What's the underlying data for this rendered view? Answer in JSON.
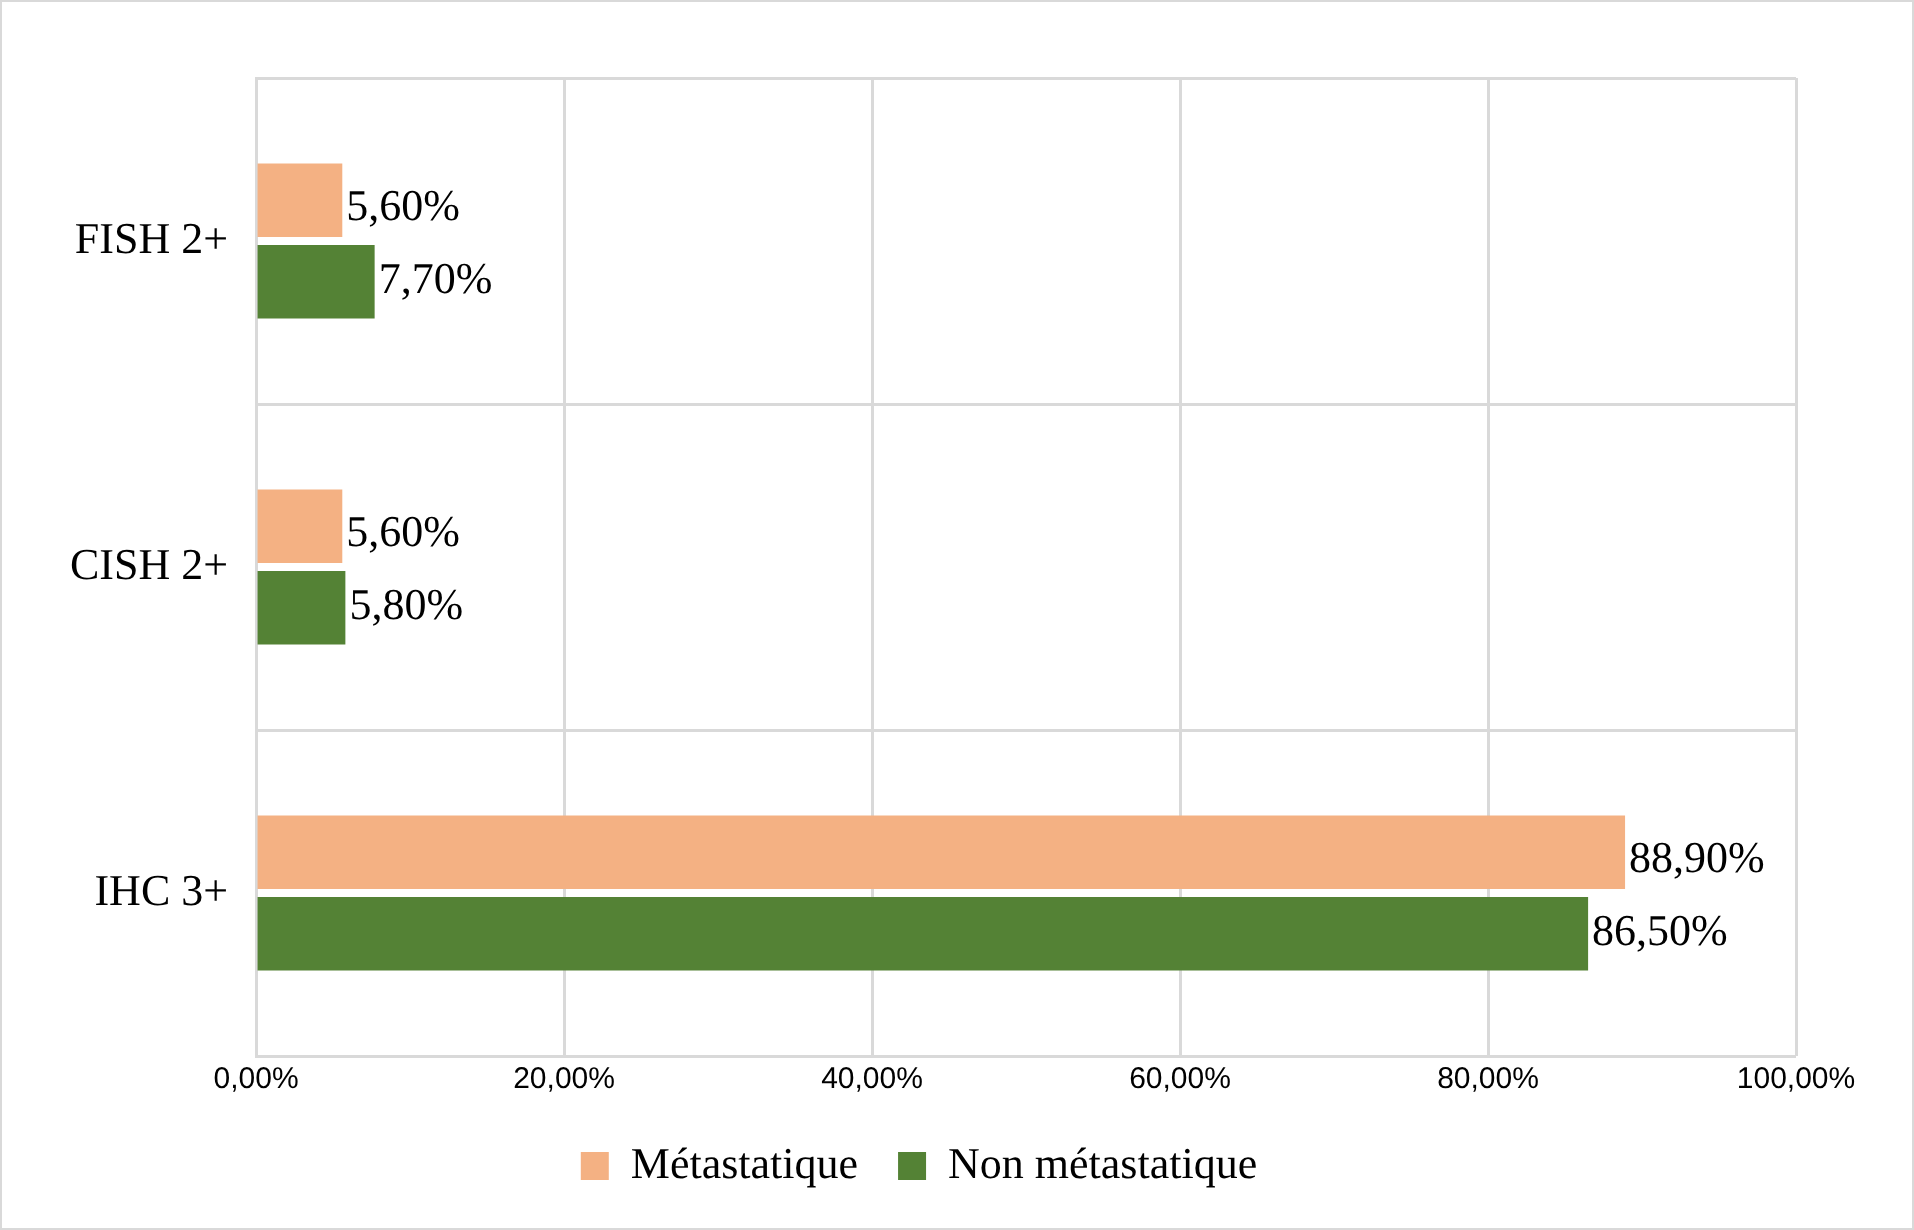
{
  "chart_data": {
    "type": "bar",
    "orientation": "horizontal",
    "categories": [
      "FISH 2+",
      "CISH 2+",
      "IHC 3+"
    ],
    "series": [
      {
        "name": "Métastatique",
        "color": "#f4b183",
        "values": [
          5.6,
          5.6,
          88.9
        ],
        "value_labels": [
          "5,60%",
          "5,60%",
          "88,90%"
        ]
      },
      {
        "name": "Non métastatique",
        "color": "#548235",
        "values": [
          7.7,
          5.8,
          86.5
        ],
        "value_labels": [
          "7,70%",
          "5,80%",
          "86,50%"
        ]
      }
    ],
    "xlim": [
      0,
      100
    ],
    "xticks": [
      {
        "value": 0,
        "label": "0,00%"
      },
      {
        "value": 20,
        "label": "20,00%"
      },
      {
        "value": 40,
        "label": "40,00%"
      },
      {
        "value": 60,
        "label": "60,00%"
      },
      {
        "value": 80,
        "label": "80,00%"
      },
      {
        "value": 100,
        "label": "100,00%"
      }
    ],
    "grid": true,
    "legend": "bottom"
  }
}
